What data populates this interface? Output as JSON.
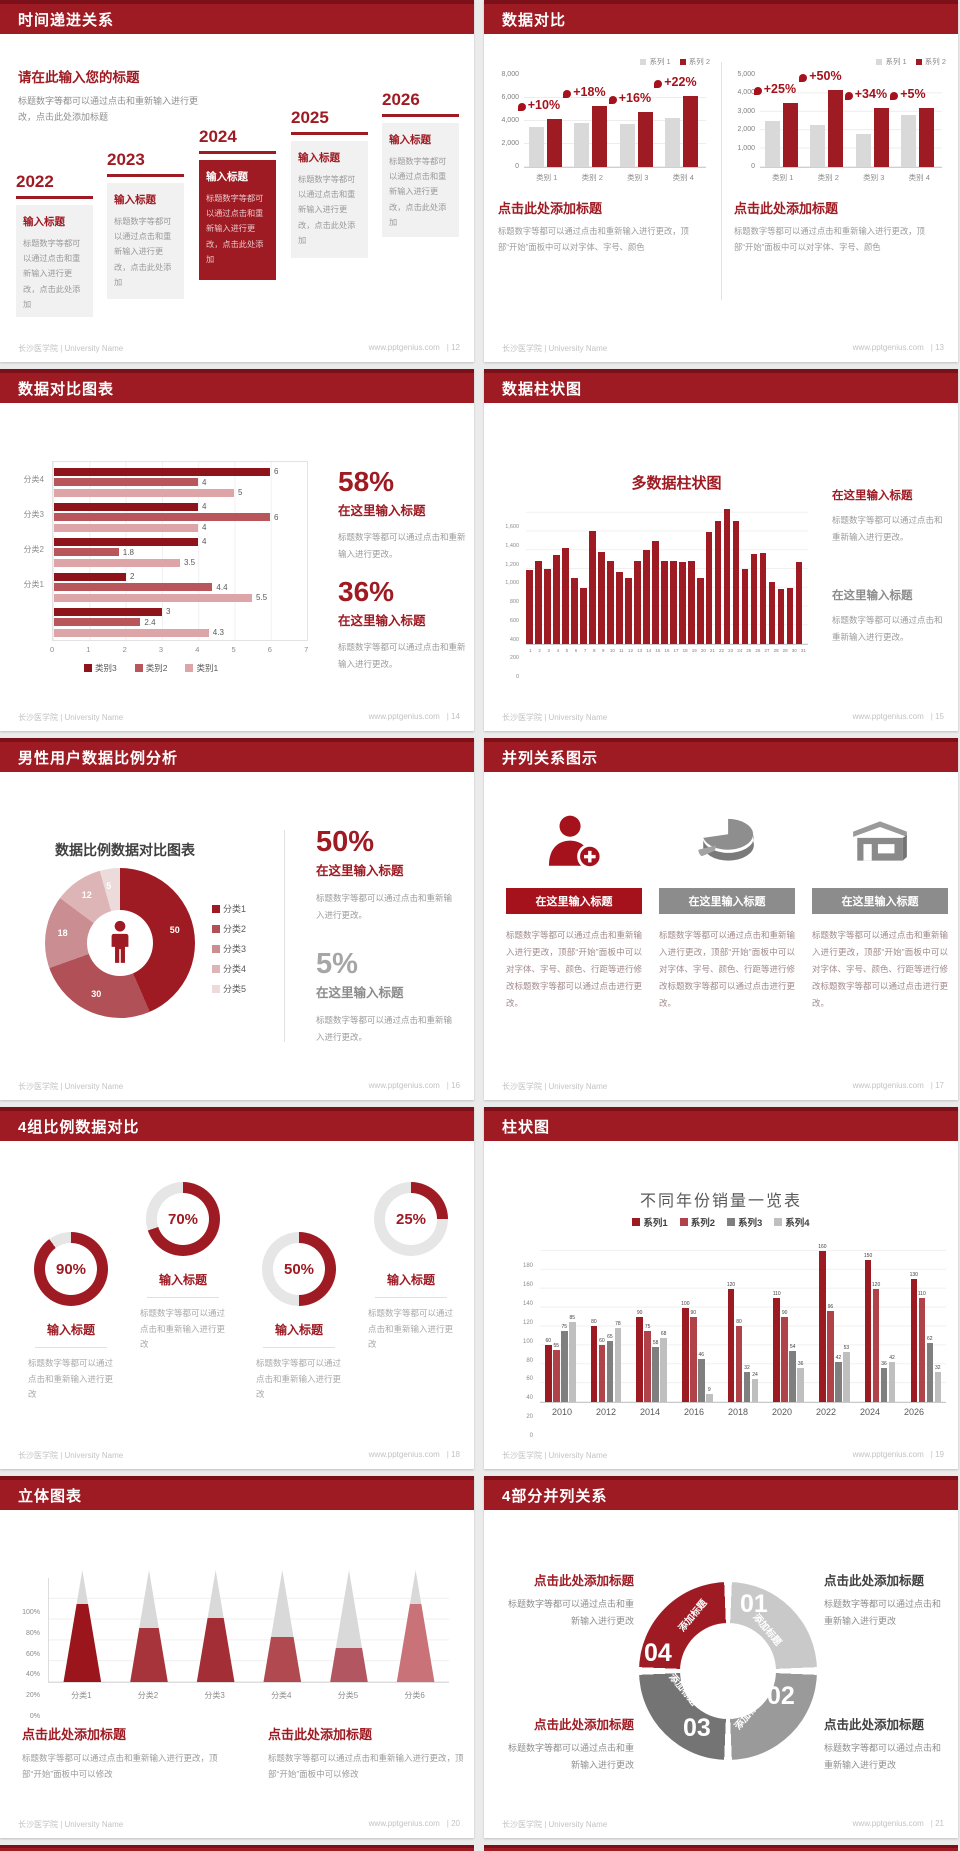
{
  "theme": {
    "accent": "#9e1b23",
    "accent_dark": "#7c1018",
    "bar_gray": "#d9d9d9"
  },
  "footer": {
    "brand": "长沙医学院 | University Name",
    "site": "www.pptgenius.com"
  },
  "s12": {
    "header": "时间递进关系",
    "page": "| 12",
    "intro_title": "请在此输入您的标题",
    "intro_text": "标题数字等都可以通过点击和重新输入进行更改，点击此处添加标题",
    "steps": [
      {
        "year": "2022",
        "title": "输入标题",
        "text": "标题数字等都可以通过点击和重新输入进行更改，点击此处添加",
        "highlight": false
      },
      {
        "year": "2023",
        "title": "输入标题",
        "text": "标题数字等都可以通过点击和重新输入进行更改，点击此处添加",
        "highlight": false
      },
      {
        "year": "2024",
        "title": "输入标题",
        "text": "标题数字等都可以通过点击和重新输入进行更改，点击此处添加",
        "highlight": true
      },
      {
        "year": "2025",
        "title": "输入标题",
        "text": "标题数字等都可以通过点击和重新输入进行更改，点击此处添加",
        "highlight": false
      },
      {
        "year": "2026",
        "title": "输入标题",
        "text": "标题数字等都可以通过点击和重新输入进行更改，点击此处添加",
        "highlight": false
      }
    ]
  },
  "s13": {
    "header": "数据对比",
    "page": "| 13",
    "legend": [
      "系列 1",
      "系列 2"
    ],
    "block_title": "点击此处添加标题",
    "block_text": "标题数字等都可以通过点击和重新输入进行更改，顶部“开始”面板中可以对字体、字号、颜色",
    "chart_data": [
      {
        "type": "bar",
        "categories": [
          "类别 1",
          "类别 2",
          "类别 3",
          "类别 4"
        ],
        "series": [
          {
            "name": "系列 1",
            "values": [
              3500,
              3800,
              3700,
              4300
            ]
          },
          {
            "name": "系列 2",
            "values": [
              4200,
              5300,
              4800,
              6200
            ]
          }
        ],
        "growth_labels": [
          "+10%",
          "+18%",
          "+16%",
          "+22%"
        ],
        "yticks": [
          "8,000",
          "6,000",
          "4,000",
          "2,000",
          "0"
        ],
        "ymax": 8000
      },
      {
        "type": "bar",
        "categories": [
          "类别 1",
          "类别 2",
          "类别 3",
          "类别 4"
        ],
        "series": [
          {
            "name": "系列 1",
            "values": [
              2500,
              2300,
              1800,
              2800
            ]
          },
          {
            "name": "系列 2",
            "values": [
              3500,
              4200,
              3200,
              3200
            ]
          }
        ],
        "growth_labels": [
          "+25%",
          "+50%",
          "+34%",
          "+5%"
        ],
        "yticks": [
          "5,000",
          "4,000",
          "3,000",
          "2,000",
          "1,000",
          "0"
        ],
        "ymax": 5000
      }
    ]
  },
  "s14": {
    "header": "数据对比图表",
    "page": "| 14",
    "chart_data": {
      "type": "bar-horizontal",
      "groups": [
        {
          "label": "分类4",
          "values": [
            6,
            4,
            5
          ]
        },
        {
          "label": "分类3",
          "values": [
            4,
            6,
            4
          ]
        },
        {
          "label": "分类2",
          "values": [
            4,
            1.8,
            3.5
          ]
        },
        {
          "label": "分类1",
          "values": [
            2,
            4.4,
            5.5
          ]
        },
        {
          "label": "",
          "values": [
            3,
            2.4,
            4.3
          ]
        }
      ],
      "xticks": [
        "0",
        "1",
        "2",
        "3",
        "4",
        "5",
        "6",
        "7"
      ],
      "xmax": 7,
      "legend": [
        "类别3",
        "类别2",
        "类别1"
      ]
    },
    "stats": [
      {
        "pct": "58%",
        "title": "在这里输入标题",
        "text": "标题数字等都可以通过点击和重新输入进行更改。"
      },
      {
        "pct": "36%",
        "title": "在这里输入标题",
        "text": "标题数字等都可以通过点击和重新输入进行更改。"
      }
    ]
  },
  "s15": {
    "header": "数据柱状图",
    "page": "| 15",
    "chart_title": "多数据柱状图",
    "chart_data": {
      "type": "bar",
      "x": [
        "1",
        "2",
        "3",
        "4",
        "5",
        "6",
        "7",
        "8",
        "9",
        "10",
        "11",
        "12",
        "13",
        "14",
        "15",
        "16",
        "17",
        "18",
        "19",
        "20",
        "21",
        "22",
        "23",
        "24",
        "25",
        "26",
        "27",
        "28",
        "29",
        "30",
        "31"
      ],
      "values": [
        790,
        890,
        800,
        950,
        1020,
        700,
        600,
        1210,
        980,
        890,
        770,
        700,
        890,
        1000,
        1100,
        890,
        890,
        870,
        890,
        700,
        1200,
        1310,
        1440,
        1310,
        800,
        960,
        970,
        660,
        590,
        600,
        870
      ],
      "yticks": [
        "1,600",
        "1,400",
        "1,200",
        "1,000",
        "800",
        "600",
        "400",
        "200",
        "0"
      ],
      "ymax": 1600
    },
    "blocks": [
      {
        "title": "在这里输入标题",
        "text": "标题数字等都可以通过点击和重新输入进行更改。",
        "accent": "red"
      },
      {
        "title": "在这里输入标题",
        "text": "标题数字等都可以通过点击和重新输入进行更改。",
        "accent": "gray"
      }
    ]
  },
  "s16": {
    "header": "男性用户数据比例分析",
    "page": "| 16",
    "chart_title": "数据比例数据对比图表",
    "chart_data": {
      "type": "pie",
      "segments": [
        {
          "label": "分类1",
          "value": 50,
          "color": "#9e1b23"
        },
        {
          "label": "分类2",
          "value": 30,
          "color": "#b25057"
        },
        {
          "label": "分类3",
          "value": 18,
          "color": "#ca8e92"
        },
        {
          "label": "分类4",
          "value": 12,
          "color": "#ddb5b7"
        },
        {
          "label": "分类5",
          "value": 5,
          "color": "#eddadb"
        }
      ]
    },
    "stats": [
      {
        "pct": "50%",
        "title": "在这里输入标题",
        "text": "标题数字等都可以通过点击和重新输入进行更改。",
        "accent": "red"
      },
      {
        "pct": "5%",
        "title": "在这里输入标题",
        "text": "标题数字等都可以通过点击和重新输入进行更改。",
        "accent": "gray"
      }
    ]
  },
  "s17": {
    "header": "并列关系图示",
    "page": "| 17",
    "columns": [
      {
        "icon": "person-add-icon",
        "title": "在这里输入标题",
        "accent": "red"
      },
      {
        "icon": "pie-3d-icon",
        "title": "在这里输入标题",
        "accent": "gray"
      },
      {
        "icon": "building-icon",
        "title": "在这里输入标题",
        "accent": "gray"
      }
    ],
    "column_text": "标题数字等都可以通过点击和重新输入进行更改，顶部“开始”面板中可以对字体、字号、颜色、行距等进行修改标题数字等都可以通过点击进行更改。"
  },
  "s18": {
    "header": "4组比例数据对比",
    "page": "| 18",
    "items": [
      {
        "pct": "90%",
        "value": 90
      },
      {
        "pct": "70%",
        "value": 70
      },
      {
        "pct": "50%",
        "value": 50
      },
      {
        "pct": "25%",
        "value": 25
      }
    ],
    "item_title": "输入标题",
    "item_text": "标题数字等都可以通过点击和重新输入进行更改"
  },
  "s19": {
    "header": "柱状图",
    "page": "| 19",
    "chart_title": "不同年份销量一览表",
    "chart_data": {
      "type": "bar",
      "categories": [
        "2010",
        "2012",
        "2014",
        "2016",
        "2018",
        "2020",
        "2022",
        "2024",
        "2026"
      ],
      "series": [
        {
          "name": "系列1",
          "color": "#9c1b22",
          "values": [
            60,
            80,
            90,
            100,
            120,
            110,
            160,
            150,
            130
          ]
        },
        {
          "name": "系列2",
          "color": "#b0434a",
          "values": [
            55,
            60,
            75,
            90,
            80,
            90,
            96,
            120,
            110
          ]
        },
        {
          "name": "系列3",
          "color": "#7f7f7f",
          "values": [
            75,
            65,
            58,
            46,
            32,
            54,
            42,
            36,
            62
          ]
        },
        {
          "name": "系列4",
          "color": "#bfbfbf",
          "values": [
            85,
            78,
            68,
            9,
            24,
            36,
            53,
            42,
            32
          ]
        }
      ],
      "yticks": [
        "180",
        "160",
        "140",
        "120",
        "100",
        "80",
        "60",
        "40",
        "20",
        "0"
      ],
      "ymax": 180
    }
  },
  "s20": {
    "header": "立体图表",
    "page": "| 20",
    "chart_data": {
      "type": "cone",
      "categories": [
        "分类1",
        "分类2",
        "分类3",
        "分类4",
        "分类5",
        "分类6"
      ],
      "values_pct": [
        70,
        48,
        57,
        40,
        30,
        70
      ],
      "colors": [
        "#9b151d",
        "#a7343b",
        "#a32e35",
        "#b04a50",
        "#b25761",
        "#c97379"
      ],
      "yticks": [
        "100%",
        "80%",
        "60%",
        "40%",
        "20%",
        "0%"
      ]
    },
    "blocks": [
      {
        "title": "点击此处添加标题",
        "text": "标题数字等都可以通过点击和重新输入进行更改，顶部“开始”面板中可以修改"
      },
      {
        "title": "点击此处添加标题",
        "text": "标题数字等都可以通过点击和重新输入进行更改，顶部“开始”面板中可以修改"
      }
    ]
  },
  "s21": {
    "header": "4部分并列关系",
    "page": "| 21",
    "segments": [
      {
        "num": "01",
        "label": "添加标题",
        "color": "#c9c9c9"
      },
      {
        "num": "02",
        "label": "添加标题",
        "color": "#9a9a9a"
      },
      {
        "num": "03",
        "label": "添加标题",
        "color": "#747474"
      },
      {
        "num": "04",
        "label": "添加标题",
        "color": "#9e1b23"
      }
    ],
    "blocks": [
      {
        "title": "点击此处添加标题",
        "text": "标题数字等都可以通过点击和重新输入进行更改",
        "accent": "red"
      },
      {
        "title": "点击此处添加标题",
        "text": "标题数字等都可以通过点击和重新输入进行更改",
        "accent": "dark"
      },
      {
        "title": "点击此处添加标题",
        "text": "标题数字等都可以通过点击和重新输入进行更改",
        "accent": "red"
      },
      {
        "title": "点击此处添加标题",
        "text": "标题数字等都可以通过点击和重新输入进行更改",
        "accent": "dark"
      }
    ]
  }
}
